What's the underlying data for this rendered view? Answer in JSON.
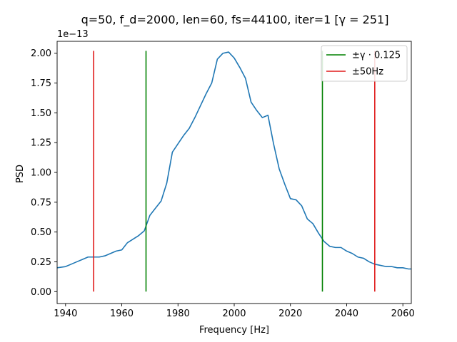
{
  "chart_data": {
    "type": "line",
    "title": "q=50, f_d=2000, len=60, fs=44100, iter=1 [γ = 251]",
    "xlabel": "Frequency [Hz]",
    "ylabel": "PSD",
    "y_offset_text": "1e−13",
    "xlim": [
      1937,
      2063
    ],
    "ylim": [
      -0.1,
      2.1
    ],
    "x_ticks": [
      1940,
      1960,
      1980,
      2000,
      2020,
      2040,
      2060
    ],
    "x_tick_labels": [
      "1940",
      "1960",
      "1980",
      "2000",
      "2020",
      "2040",
      "2060"
    ],
    "y_ticks": [
      0,
      0.25,
      0.5,
      0.75,
      1.0,
      1.25,
      1.5,
      1.75,
      2.0
    ],
    "y_tick_labels": [
      "0.00",
      "0.25",
      "0.50",
      "0.75",
      "1.00",
      "1.25",
      "1.50",
      "1.75",
      "2.00"
    ],
    "grid": false,
    "legend_position": "top-right",
    "series": [
      {
        "color": "#1f77b4",
        "x": [
          1937,
          1940,
          1942,
          1944,
          1946,
          1948,
          1950,
          1952,
          1954,
          1956,
          1958,
          1960,
          1962,
          1964,
          1966,
          1968,
          1970,
          1972,
          1974,
          1976,
          1978,
          1980,
          1982,
          1984,
          1986,
          1988,
          1990,
          1992,
          1994,
          1996,
          1998,
          2000,
          2002,
          2004,
          2006,
          2008,
          2010,
          2012,
          2014,
          2016,
          2018,
          2020,
          2022,
          2024,
          2026,
          2028,
          2030,
          2032,
          2034,
          2036,
          2038,
          2040,
          2042,
          2044,
          2046,
          2048,
          2050,
          2052,
          2054,
          2056,
          2058,
          2060,
          2062,
          2063
        ],
        "y": [
          0.2,
          0.21,
          0.23,
          0.25,
          0.27,
          0.29,
          0.29,
          0.29,
          0.3,
          0.32,
          0.34,
          0.35,
          0.41,
          0.44,
          0.47,
          0.51,
          0.64,
          0.7,
          0.76,
          0.91,
          1.17,
          1.24,
          1.31,
          1.37,
          1.46,
          1.56,
          1.66,
          1.75,
          1.95,
          2.0,
          2.01,
          1.96,
          1.88,
          1.79,
          1.59,
          1.52,
          1.46,
          1.48,
          1.24,
          1.03,
          0.9,
          0.78,
          0.77,
          0.72,
          0.61,
          0.57,
          0.49,
          0.42,
          0.38,
          0.37,
          0.37,
          0.34,
          0.32,
          0.29,
          0.28,
          0.25,
          0.23,
          0.22,
          0.21,
          0.21,
          0.2,
          0.2,
          0.19,
          0.19
        ]
      }
    ],
    "vlines": [
      {
        "name": "±γ · 0.125",
        "color": "#008000",
        "x": [
          1968.625,
          2031.375
        ],
        "ymin": 0,
        "ymax": 2.02
      },
      {
        "name": "±50Hz",
        "color": "#e01b1b",
        "x": [
          1950,
          2050
        ],
        "ymin": 0,
        "ymax": 2.02
      }
    ]
  }
}
